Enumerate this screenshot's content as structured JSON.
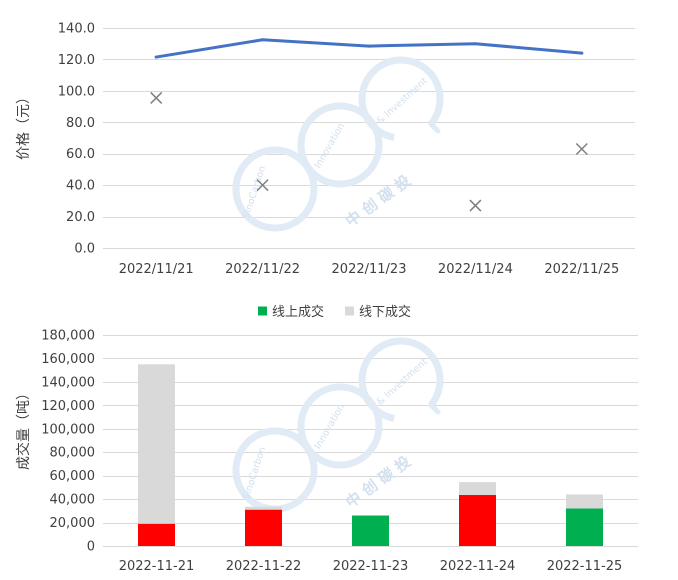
{
  "chart_data": [
    {
      "type": "line",
      "categories": [
        "2022/11/21",
        "2022/11/22",
        "2022/11/23",
        "2022/11/24",
        "2022/11/25"
      ],
      "series": [
        {
          "kind": "line",
          "color": "#4472C4",
          "values": [
            121.5,
            132.5,
            128.5,
            130.0,
            124.0
          ]
        },
        {
          "kind": "scatter",
          "marker": "x",
          "color": "#7F7F7F",
          "values": [
            95.5,
            40.0,
            null,
            27.0,
            63.0
          ]
        }
      ],
      "ylabel": "价格（元）",
      "ylim": [
        0,
        140
      ],
      "ystep": 20,
      "yticks": [
        "0.0",
        "20.0",
        "40.0",
        "60.0",
        "80.0",
        "100.0",
        "120.0",
        "140.0"
      ],
      "grid": true,
      "legend": "none"
    },
    {
      "type": "bar",
      "stacked": true,
      "categories": [
        "2022-11-21",
        "2022-11-22",
        "2022-11-23",
        "2022-11-24",
        "2022-11-25"
      ],
      "series": [
        {
          "name": "线上成交",
          "color": "#00B050",
          "point_colors": [
            "#FF0000",
            "#FF0000",
            "#00B050",
            "#FF0000",
            "#00B050"
          ],
          "values": [
            19000,
            31000,
            26000,
            43500,
            32000
          ]
        },
        {
          "name": "线下成交",
          "color": "#D9D9D9",
          "values": [
            136000,
            2500,
            0,
            11000,
            12000
          ]
        }
      ],
      "ylabel": "成交量（吨）",
      "ylim": [
        0,
        180000
      ],
      "ystep": 20000,
      "yticks": [
        "0",
        "20,000",
        "40,000",
        "60,000",
        "80,000",
        "100,000",
        "120,000",
        "140,000",
        "160,000",
        "180,000"
      ],
      "grid": true,
      "legend": "top-center"
    }
  ],
  "watermark": {
    "lines": [
      "SinoCarbon",
      "Innovation",
      "& Investment"
    ],
    "cn": "中 创 碳 投"
  }
}
